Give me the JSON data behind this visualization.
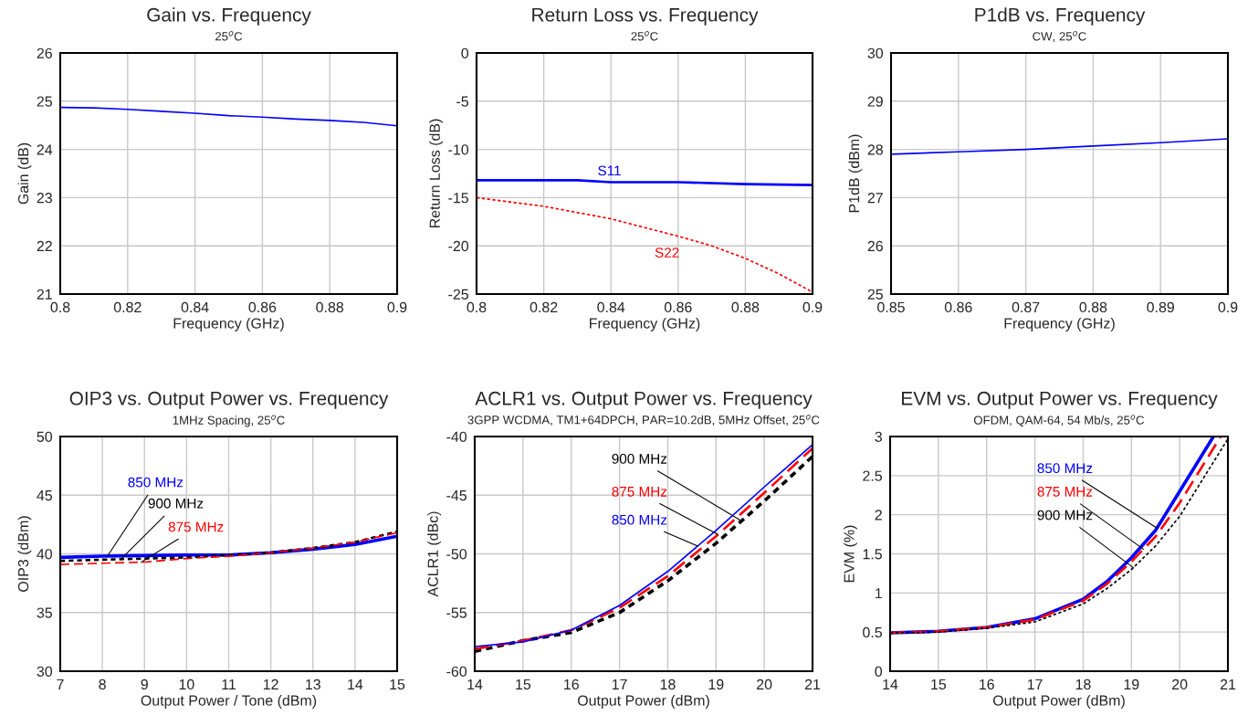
{
  "chart_data": [
    {
      "type": "line",
      "title": "Gain vs. Frequency",
      "subtitle": "25$^{o}$C",
      "xlabel": "Frequency (GHz)",
      "ylabel": "Gain (dB)",
      "x": [
        0.8,
        0.81,
        0.82,
        0.83,
        0.84,
        0.85,
        0.86,
        0.87,
        0.88,
        0.89,
        0.9
      ],
      "series": [
        {
          "color": "#0000ff",
          "values": [
            24.87,
            24.86,
            24.83,
            24.79,
            24.75,
            24.7,
            24.67,
            24.63,
            24.6,
            24.56,
            24.49
          ]
        }
      ],
      "xlim": [
        0.8,
        0.9
      ],
      "xticks": [
        0.8,
        0.82,
        0.84,
        0.86,
        0.88,
        0.9
      ],
      "ylim": [
        21,
        26
      ],
      "yticks": [
        21,
        22,
        23,
        24,
        25,
        26
      ],
      "grid": true,
      "line_style": "solid"
    },
    {
      "type": "line",
      "title": "Return Loss vs. Frequency",
      "subtitle": "25$^{o}$C",
      "xlabel": "Frequency (GHz)",
      "ylabel": "Return Loss (dB)",
      "series": [
        {
          "name": "S11",
          "color": "#0000ff",
          "line_style": "solid",
          "x": [
            0.8,
            0.82,
            0.83,
            0.84,
            0.86,
            0.88,
            0.9
          ],
          "values": [
            -13.2,
            -13.2,
            -13.2,
            -13.4,
            -13.4,
            -13.6,
            -13.7
          ]
        },
        {
          "name": "S22",
          "color": "#ff0000",
          "line_style": "dotted",
          "x": [
            0.8,
            0.82,
            0.84,
            0.86,
            0.87,
            0.88,
            0.89,
            0.9
          ],
          "values": [
            -15,
            -15.9,
            -17.2,
            -19,
            -20,
            -21.3,
            -22.9,
            -24.8
          ]
        }
      ],
      "xlim": [
        0.8,
        0.9
      ],
      "xticks": [
        0.8,
        0.82,
        0.84,
        0.86,
        0.88,
        0.9
      ],
      "ylim": [
        -25,
        0
      ],
      "yticks": [
        -25,
        -20,
        -15,
        -10,
        -5,
        0
      ],
      "grid": true
    },
    {
      "type": "line",
      "title": "P1dB vs. Frequency",
      "subtitle": "CW, 25$^{o}$C",
      "xlabel": "Frequency (GHz)",
      "ylabel": "P1dB (dBm)",
      "x": [
        0.85,
        0.86,
        0.87,
        0.88,
        0.89,
        0.9
      ],
      "series": [
        {
          "color": "#0000ff",
          "values": [
            27.9,
            27.95,
            28.0,
            28.07,
            28.14,
            28.22
          ]
        }
      ],
      "xlim": [
        0.85,
        0.9
      ],
      "xticks": [
        0.85,
        0.86,
        0.87,
        0.88,
        0.89,
        0.9
      ],
      "ylim": [
        25,
        30
      ],
      "yticks": [
        25,
        26,
        27,
        28,
        29,
        30
      ],
      "grid": true,
      "line_style": "solid"
    },
    {
      "type": "line",
      "title": "OIP3 vs. Output Power vs. Frequency",
      "subtitle": "1MHz Spacing, 25$^{o}$C",
      "xlabel": "Output Power / Tone (dBm)",
      "ylabel": "OIP3 (dBm)",
      "x": [
        7,
        8,
        9,
        10,
        11,
        12,
        13,
        14,
        15
      ],
      "series": [
        {
          "name": "850 MHz",
          "color": "#0000ff",
          "line_style": "solid",
          "values": [
            39.7,
            39.8,
            39.85,
            39.9,
            39.9,
            40.1,
            40.4,
            40.8,
            41.5
          ]
        },
        {
          "name": "900 MHz",
          "color": "#000000",
          "line_style": "dotted",
          "values": [
            39.4,
            39.5,
            39.6,
            39.7,
            39.9,
            40.1,
            40.5,
            41.0,
            41.9
          ]
        },
        {
          "name": "875 MHz",
          "color": "#ff0000",
          "line_style": "dashed",
          "values": [
            39.1,
            39.2,
            39.3,
            39.6,
            39.8,
            40.1,
            40.5,
            41.0,
            41.8
          ]
        }
      ],
      "xlim": [
        7,
        15
      ],
      "xticks": [
        7,
        8,
        9,
        10,
        11,
        12,
        13,
        14,
        15
      ],
      "ylim": [
        30,
        50
      ],
      "yticks": [
        30,
        35,
        40,
        45,
        50
      ],
      "grid": true
    },
    {
      "type": "line",
      "title": "ACLR1 vs. Output Power vs. Frequency",
      "subtitle": "3GPP WCDMA, TM1+64DPCH, PAR=10.2dB, 5MHz Offset, 25$^{o}$C",
      "xlabel": "Output Power (dBm)",
      "ylabel": "ACLR1 (dBc)",
      "x": [
        14,
        15,
        16,
        17,
        18,
        19,
        20,
        21
      ],
      "series": [
        {
          "name": "900 MHz",
          "color": "#000000",
          "line_style": "dotted",
          "values": [
            -58.3,
            -57.4,
            -56.7,
            -55.0,
            -52.3,
            -49.1,
            -45.5,
            -41.7
          ]
        },
        {
          "name": "875 MHz",
          "color": "#ff0000",
          "line_style": "dashed",
          "values": [
            -58.1,
            -57.4,
            -56.5,
            -54.6,
            -51.9,
            -48.5,
            -44.8,
            -41.0
          ]
        },
        {
          "name": "850 MHz",
          "color": "#0000ff",
          "line_style": "solid",
          "values": [
            -57.9,
            -57.5,
            -56.5,
            -54.4,
            -51.5,
            -48.0,
            -44.3,
            -40.7
          ]
        }
      ],
      "xlim": [
        14,
        21
      ],
      "xticks": [
        14,
        15,
        16,
        17,
        18,
        19,
        20,
        21
      ],
      "ylim": [
        -60,
        -40
      ],
      "yticks": [
        -60,
        -55,
        -50,
        -45,
        -40
      ],
      "grid": true
    },
    {
      "type": "line",
      "title": "EVM vs. Output Power vs. Frequency",
      "subtitle": "OFDM, QAM-64, 54 Mb/s, 25$^{o}$C",
      "xlabel": "Output Power (dBm)",
      "ylabel": "EVM (%)",
      "series": [
        {
          "name": "850 MHz",
          "color": "#0000ff",
          "line_style": "solid",
          "x": [
            14,
            15,
            16,
            17,
            18,
            18.5,
            19,
            19.5,
            20,
            20.7
          ],
          "values": [
            0.49,
            0.51,
            0.56,
            0.67,
            0.92,
            1.15,
            1.45,
            1.8,
            2.3,
            3.0
          ]
        },
        {
          "name": "875 MHz",
          "color": "#ff0000",
          "line_style": "dashed",
          "x": [
            14,
            15,
            16,
            17,
            18,
            18.5,
            19,
            19.5,
            20,
            20.85
          ],
          "values": [
            0.49,
            0.51,
            0.56,
            0.66,
            0.9,
            1.12,
            1.4,
            1.72,
            2.15,
            3.0
          ]
        },
        {
          "name": "900 MHz",
          "color": "#000000",
          "line_style": "dotted",
          "x": [
            14,
            15,
            16,
            17,
            18,
            18.5,
            19,
            19.5,
            20,
            21
          ],
          "values": [
            0.49,
            0.5,
            0.55,
            0.63,
            0.86,
            1.06,
            1.3,
            1.6,
            1.98,
            2.97
          ]
        }
      ],
      "xlim": [
        14,
        21
      ],
      "xticks": [
        14,
        15,
        16,
        17,
        18,
        19,
        20,
        21
      ],
      "ylim": [
        0,
        3
      ],
      "yticks": [
        0,
        0.5,
        1,
        1.5,
        2,
        2.5,
        3
      ],
      "grid": true
    }
  ]
}
